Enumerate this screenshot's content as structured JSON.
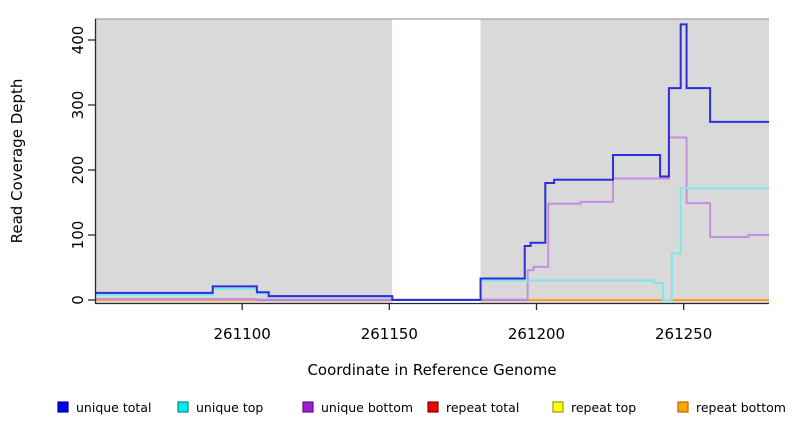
{
  "axes": {
    "y_title": "Read Coverage Depth",
    "x_title": "Coordinate in Reference Genome",
    "y_ticks": [
      0,
      100,
      200,
      300,
      400
    ],
    "x_ticks": [
      261100,
      261150,
      261200,
      261250
    ]
  },
  "legend": {
    "items": [
      {
        "label": "unique total",
        "fill": "#0000EE",
        "border": "#0000A8"
      },
      {
        "label": "unique top",
        "fill": "#00EEEE",
        "border": "#008B8B"
      },
      {
        "label": "unique bottom",
        "fill": "#9B1FD0",
        "border": "#5E0F8E"
      },
      {
        "label": "repeat total",
        "fill": "#EE0000",
        "border": "#8B0000"
      },
      {
        "label": "repeat top",
        "fill": "#FFFF00",
        "border": "#9A9A00"
      },
      {
        "label": "repeat bottom",
        "fill": "#FFA400",
        "border": "#B06F00"
      }
    ]
  },
  "chart_data": {
    "type": "line",
    "style": "step-after",
    "xlabel": "Coordinate in Reference Genome",
    "ylabel": "Read Coverage Depth",
    "xlim": [
      261050,
      261279
    ],
    "ylim": [
      0,
      425
    ],
    "grid": false,
    "legend_position": "bottom",
    "background_color": "#D9D9D9",
    "masked_region": {
      "start": 261151,
      "end": 261181,
      "color": "#FFFFFF"
    },
    "series": [
      {
        "name": "repeat top",
        "color": "#E8E800",
        "segments": [
          {
            "points": [
              [
                261050,
                0
              ]
            ],
            "end": 261279
          }
        ]
      },
      {
        "name": "repeat total",
        "color": "#C95570",
        "segments": [
          {
            "points": [
              [
                261050,
                0
              ]
            ],
            "end": 261279
          }
        ]
      },
      {
        "name": "repeat bottom",
        "color": "#FF9F1F",
        "segments": [
          {
            "points": [
              [
                261050,
                0
              ]
            ],
            "end": 261105
          },
          {
            "points": [
              [
                261197,
                0
              ]
            ],
            "end": 261279
          }
        ]
      },
      {
        "name": "unique bottom",
        "color": "#C48FDE",
        "segments": [
          {
            "points": [
              [
                261050,
                1.5
              ],
              [
                261105,
                0.5
              ],
              [
                261197,
                46
              ],
              [
                261199,
                51
              ],
              [
                261204,
                148
              ],
              [
                261215,
                151
              ],
              [
                261226,
                187
              ],
              [
                261245,
                250
              ],
              [
                261251,
                149
              ],
              [
                261259,
                97
              ],
              [
                261272,
                100
              ]
            ],
            "end": 261279
          }
        ]
      },
      {
        "name": "unique top",
        "color": "#7CE8E8",
        "segments": [
          {
            "points": [
              [
                261050,
                8
              ],
              [
                261090,
                17
              ],
              [
                261105,
                10
              ],
              [
                261109,
                5
              ],
              [
                261151,
                0
              ],
              [
                261181,
                30
              ],
              [
                261240,
                26
              ],
              [
                261243,
                0
              ],
              [
                261246,
                72
              ],
              [
                261249,
                172
              ]
            ],
            "end": 261279
          }
        ]
      },
      {
        "name": "unique total",
        "color": "#2E2EDC",
        "segments": [
          {
            "points": [
              [
                261050,
                11
              ],
              [
                261090,
                21
              ],
              [
                261105,
                12
              ],
              [
                261109,
                6
              ],
              [
                261151,
                0
              ],
              [
                261181,
                33
              ],
              [
                261196,
                83
              ],
              [
                261198,
                88
              ],
              [
                261203,
                180
              ],
              [
                261206,
                185
              ],
              [
                261226,
                223
              ],
              [
                261242,
                190
              ],
              [
                261245,
                326
              ],
              [
                261249,
                424
              ],
              [
                261251,
                326
              ],
              [
                261259,
                274
              ]
            ],
            "end": 261279
          }
        ]
      }
    ]
  }
}
